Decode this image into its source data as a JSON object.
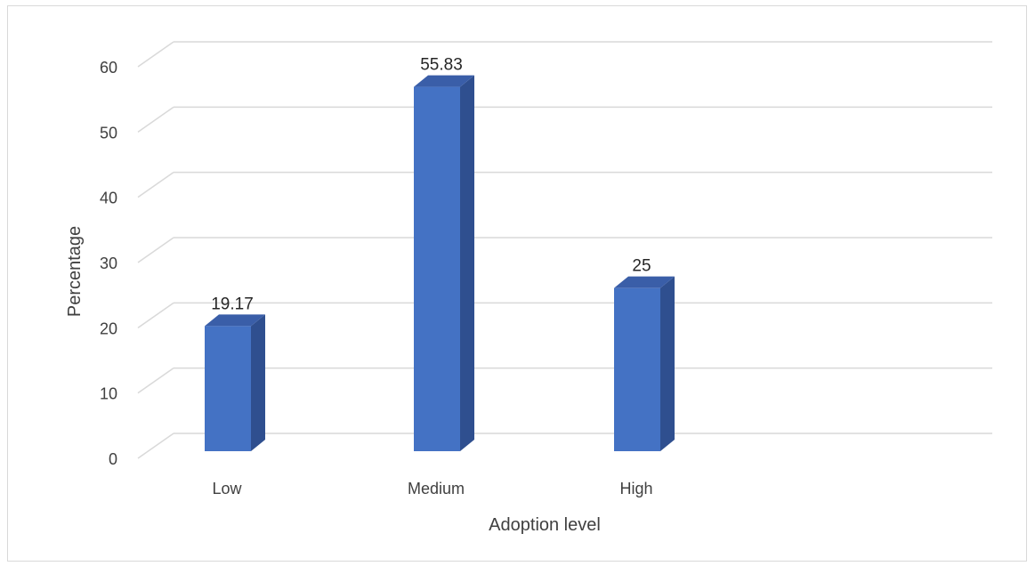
{
  "chart_data": {
    "type": "bar",
    "style": "3d-column",
    "categories": [
      "Low",
      "Medium",
      "High"
    ],
    "values": [
      19.17,
      55.83,
      25
    ],
    "data_labels": [
      "19.17",
      "55.83",
      "25"
    ],
    "title": "",
    "xlabel": "Adoption level",
    "ylabel": "Percentage",
    "ylim": [
      0,
      60
    ],
    "yticks": [
      0,
      10,
      20,
      30,
      40,
      50,
      60
    ],
    "ytick_labels": [
      "0",
      "10",
      "20",
      "30",
      "40",
      "50",
      "60"
    ],
    "grid": true,
    "legend": "none",
    "colors": {
      "bar_front": "#4472c4",
      "bar_side": "#2f4f8f",
      "bar_top": "#3a5ea8",
      "grid": "#d9d9d9",
      "text": "#404040"
    }
  }
}
